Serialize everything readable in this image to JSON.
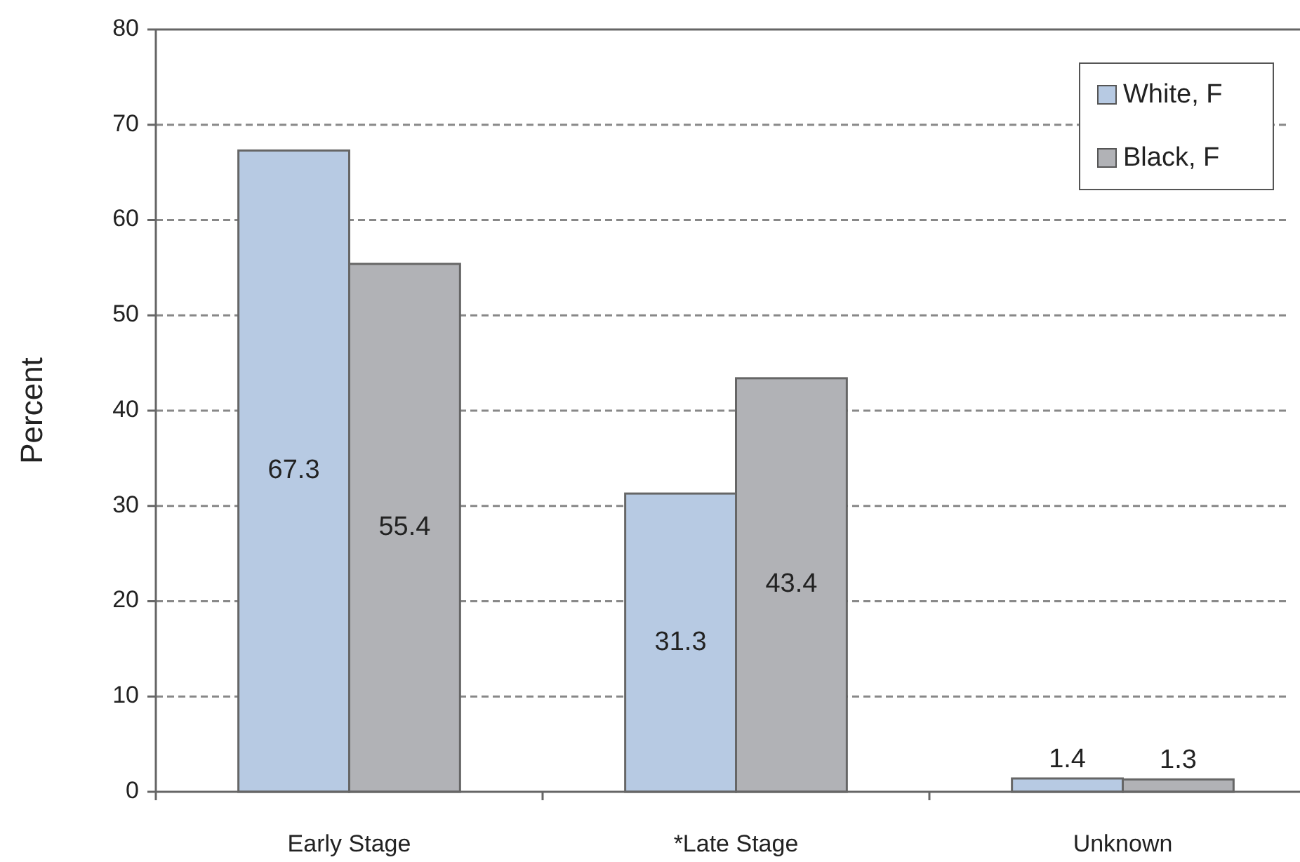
{
  "chart_data": {
    "type": "bar",
    "ylabel": "Percent",
    "categories": [
      "Early Stage",
      "*Late Stage",
      "Unknown"
    ],
    "series": [
      {
        "name": "White, F",
        "color": "#b7cae3",
        "values": [
          67.3,
          31.3,
          1.4
        ]
      },
      {
        "name": "Black, F",
        "color": "#b1b2b6",
        "values": [
          55.4,
          43.4,
          1.3
        ]
      }
    ],
    "ylim": [
      0,
      80
    ],
    "yticks": [
      0,
      10,
      20,
      30,
      40,
      50,
      60,
      70,
      80
    ],
    "grid": "y",
    "legend": "top right",
    "data_labels": true
  }
}
